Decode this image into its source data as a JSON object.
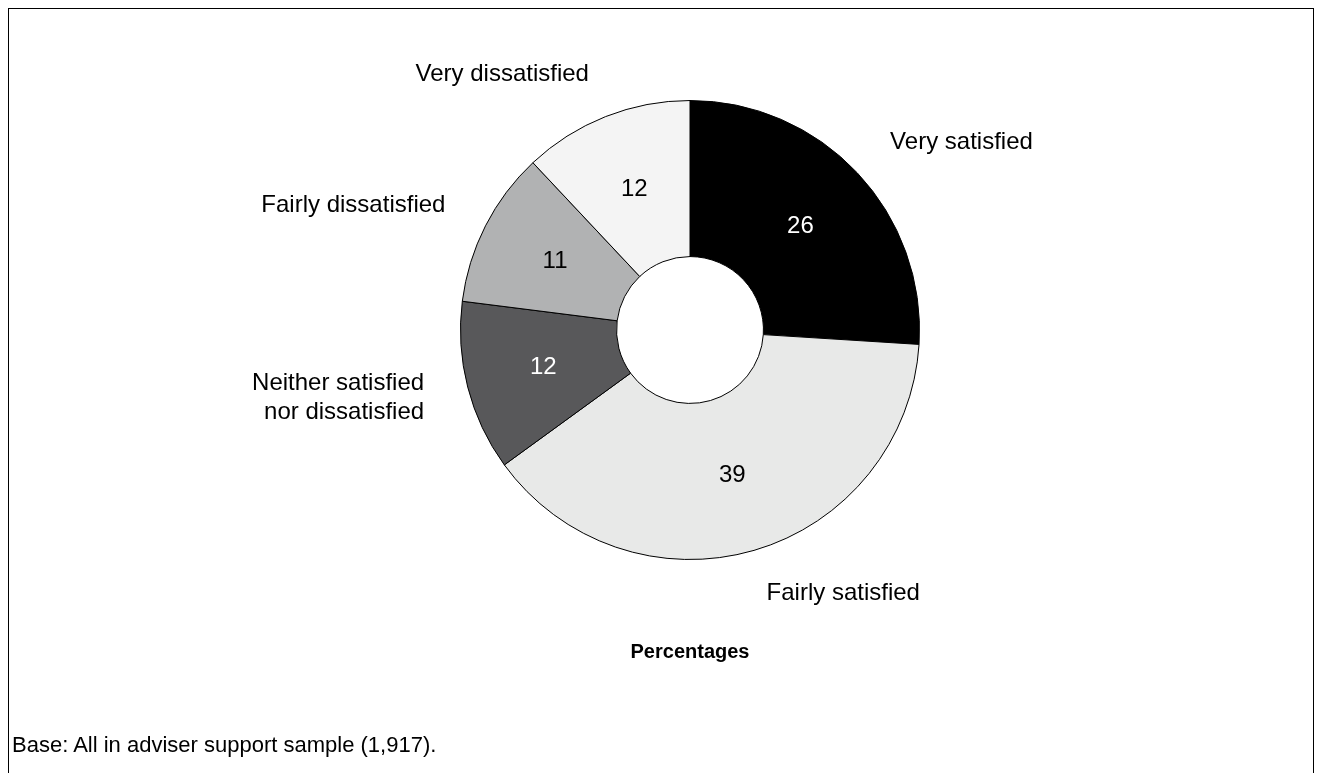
{
  "chart_data": {
    "type": "donut",
    "title": "Percentages",
    "categories": [
      "Very satisfied",
      "Fairly satisfied",
      "Neither satisfied nor dissatisfied",
      "Fairly dissatisfied",
      "Very dissatisfied"
    ],
    "values": [
      26,
      39,
      12,
      11,
      12
    ],
    "colors": [
      "#000000",
      "#e8e9e8",
      "#58585a",
      "#b1b2b3",
      "#f4f4f4"
    ],
    "data_labels": true,
    "annotations": [
      "Base: All in adviser support sample (1,917)."
    ]
  }
}
